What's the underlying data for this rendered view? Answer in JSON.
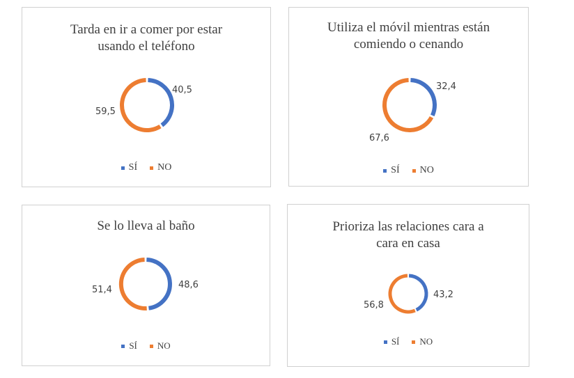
{
  "colors": {
    "si": "#4472c4",
    "no": "#ed7d31"
  },
  "chart_data": [
    {
      "type": "pie",
      "donut": true,
      "title": "Tarda en ir a comer por estar usando el teléfono",
      "title_lines": [
        "Tarda en ir a comer por estar",
        "usando el teléfono"
      ],
      "categories": [
        "SÍ",
        "NO"
      ],
      "values": [
        40.5,
        59.5
      ],
      "value_labels": [
        "40,5",
        "59,5"
      ],
      "legend": [
        "SÍ",
        "NO"
      ],
      "legend_position": "bottom"
    },
    {
      "type": "pie",
      "donut": true,
      "title": "Utiliza el móvil mientras están comiendo o cenando",
      "title_lines": [
        "Utiliza el móvil mientras están",
        "comiendo o cenando"
      ],
      "categories": [
        "SÍ",
        "NO"
      ],
      "values": [
        32.4,
        67.6
      ],
      "value_labels": [
        "32,4",
        "67,6"
      ],
      "legend": [
        "SÍ",
        "NO"
      ],
      "legend_position": "bottom"
    },
    {
      "type": "pie",
      "donut": true,
      "title": "Se lo lleva al baño",
      "title_lines": [
        "Se lo lleva al baño"
      ],
      "categories": [
        "SÍ",
        "NO"
      ],
      "values": [
        48.6,
        51.4
      ],
      "value_labels": [
        "48,6",
        "51,4"
      ],
      "legend": [
        "SÍ",
        "NO"
      ],
      "legend_position": "bottom"
    },
    {
      "type": "pie",
      "donut": true,
      "title": "Prioriza las relaciones cara a cara en casa",
      "title_lines": [
        "Prioriza las relaciones cara a",
        "cara en casa"
      ],
      "categories": [
        "SÍ",
        "NO"
      ],
      "values": [
        43.2,
        56.8
      ],
      "value_labels": [
        "43,2",
        "56,8"
      ],
      "legend": [
        "SÍ",
        "NO"
      ],
      "legend_position": "bottom"
    }
  ]
}
